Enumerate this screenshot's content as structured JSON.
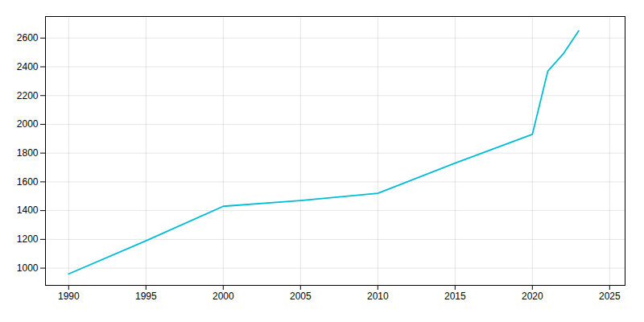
{
  "chart_data": {
    "type": "line",
    "x": [
      1990,
      1995,
      2000,
      2005,
      2010,
      2015,
      2020,
      2021,
      2022,
      2023
    ],
    "values": [
      960,
      1190,
      1430,
      1470,
      1520,
      1730,
      1930,
      2370,
      2490,
      2650
    ],
    "color": "#00bcd4",
    "xlim": [
      1988.5,
      2026
    ],
    "ylim": [
      880,
      2750
    ],
    "xticks": [
      1990,
      1995,
      2000,
      2005,
      2010,
      2015,
      2020,
      2025
    ],
    "yticks": [
      1000,
      1200,
      1400,
      1600,
      1800,
      2000,
      2200,
      2400,
      2600
    ],
    "grid": true
  }
}
